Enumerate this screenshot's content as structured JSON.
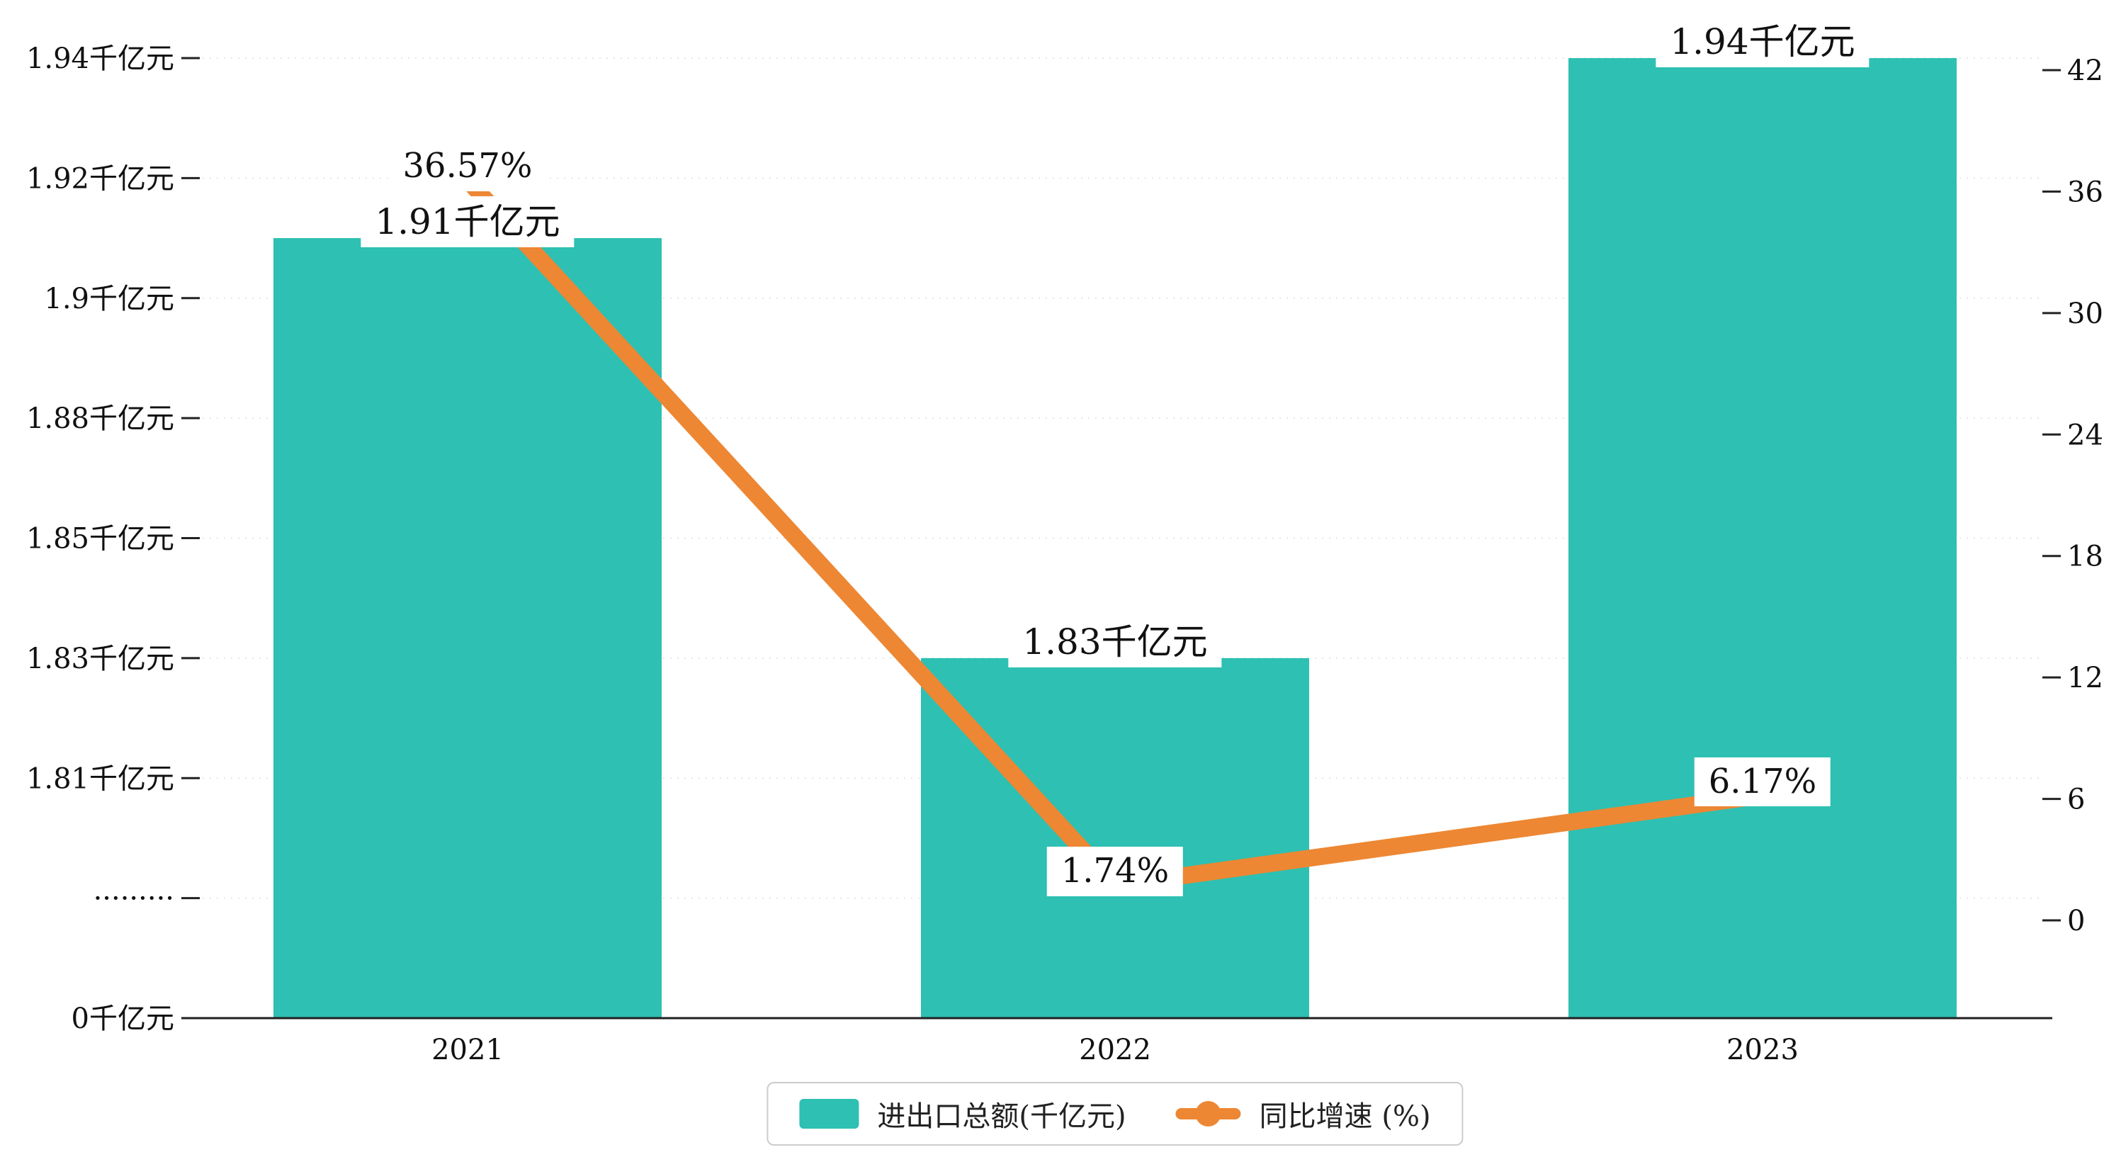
{
  "chart_data": {
    "type": "bar",
    "combo": "bar+line (dual axis)",
    "categories": [
      "2021",
      "2022",
      "2023"
    ],
    "series": [
      {
        "name": "进出口总额(千亿元)",
        "type": "bar",
        "axis": "left",
        "color": "#2EC0B2",
        "values": [
          1.91,
          1.83,
          1.94
        ],
        "labels": [
          "1.91千亿元",
          "1.83千亿元",
          "1.94千亿元"
        ]
      },
      {
        "name": "同比增速 (%)",
        "type": "line",
        "axis": "right",
        "color": "#ED8733",
        "values": [
          36.57,
          1.74,
          6.17
        ],
        "labels": [
          "36.57%",
          "1.74%",
          "6.17%"
        ]
      }
    ],
    "left_axis": {
      "tick_labels": [
        "1.94千亿元",
        "1.92千亿元",
        "1.9千亿元",
        "1.88千亿元",
        "1.85千亿元",
        "1.83千亿元",
        "1.81千亿元",
        "·········",
        "0千亿元"
      ],
      "tick_values": [
        1.94,
        1.92,
        1.9,
        1.88,
        1.85,
        1.83,
        1.81,
        null,
        0
      ],
      "broken_axis": true
    },
    "right_axis": {
      "tick_labels": [
        "42",
        "36",
        "30",
        "24",
        "18",
        "12",
        "6",
        "0"
      ],
      "min": 0,
      "max": 42,
      "step": 6
    },
    "legend": [
      {
        "label": "进出口总额(千亿元)",
        "marker": "square",
        "color": "#2EC0B2"
      },
      {
        "label": "同比增速 (%)",
        "marker": "line-dot",
        "color": "#ED8733"
      }
    ],
    "grid": "dotted horizontal",
    "background": "#ffffff"
  }
}
